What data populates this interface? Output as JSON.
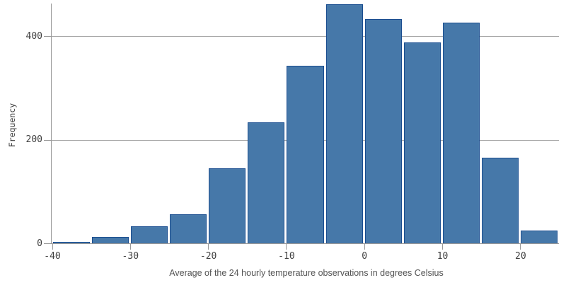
{
  "chart_data": {
    "type": "bar",
    "subtype": "histogram",
    "bin_start": -40,
    "bin_width": 5,
    "values": [
      4,
      13,
      34,
      56,
      145,
      234,
      344,
      462,
      433,
      388,
      426,
      166,
      25
    ],
    "xlabel": "Average of the 24 hourly temperature observations in degrees Celsius",
    "ylabel": "Frequency",
    "x_ticks": [
      -40,
      -30,
      -20,
      -10,
      0,
      10,
      20
    ],
    "y_ticks": [
      0,
      200,
      400
    ],
    "xlim": [
      -40,
      25
    ],
    "ylim": [
      0,
      464
    ],
    "grid": "horizontal",
    "legend": "none",
    "bar_fill": "#4678a9",
    "bar_stroke": "#1a4d8f",
    "axis_color": "#999999",
    "label_color": "#404040"
  }
}
